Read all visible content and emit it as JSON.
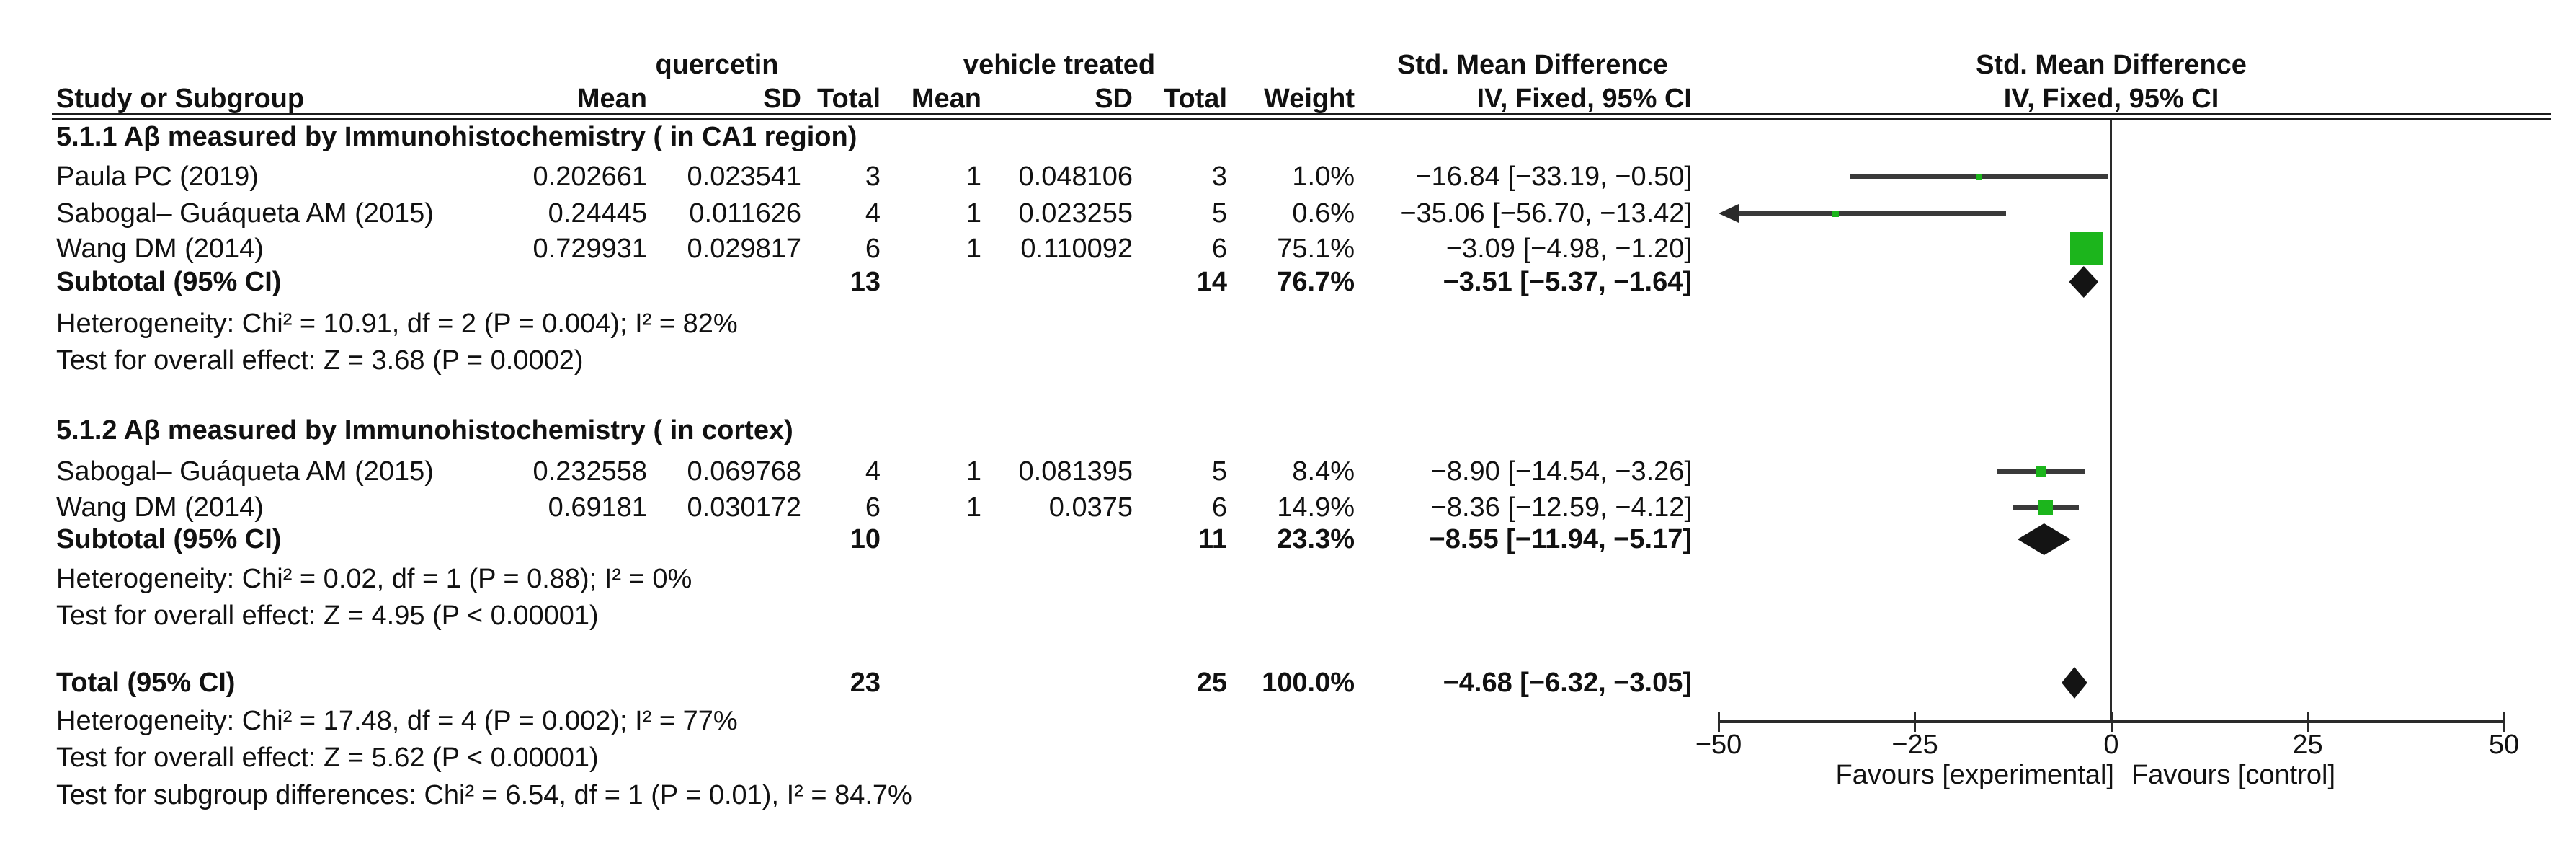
{
  "header": {
    "col_study": "Study or Subgroup",
    "group1_title": "quercetin",
    "group2_title": "vehicle treated",
    "smd_title": "Std. Mean Difference",
    "smd_sub": "IV, Fixed, 95% CI",
    "plot_title": "Std. Mean Difference",
    "plot_sub": "IV, Fixed, 95% CI",
    "cols": [
      "Mean",
      "SD",
      "Total",
      "Mean",
      "SD",
      "Total",
      "Weight"
    ]
  },
  "sections": [
    {
      "title": "5.1.1 Aβ measured by Immunohistochemistry ( in CA1 region)",
      "studies": [
        {
          "name": "Paula PC (2019)",
          "mean1": "0.202661",
          "sd1": "0.023541",
          "n1": "3",
          "mean2": "1",
          "sd2": "0.048106",
          "n2": "3",
          "weight": "1.0%",
          "ci": "−16.84 [−33.19, −0.50]"
        },
        {
          "name": "Sabogal– Guáqueta AM (2015)",
          "mean1": "0.24445",
          "sd1": "0.011626",
          "n1": "4",
          "mean2": "1",
          "sd2": "0.023255",
          "n2": "5",
          "weight": "0.6%",
          "ci": "−35.06 [−56.70, −13.42]"
        },
        {
          "name": "Wang DM (2014)",
          "mean1": "0.729931",
          "sd1": "0.029817",
          "n1": "6",
          "mean2": "1",
          "sd2": "0.110092",
          "n2": "6",
          "weight": "75.1%",
          "ci": "−3.09 [−4.98, −1.20]"
        }
      ],
      "subtotal": {
        "label": "Subtotal (95% CI)",
        "n1": "13",
        "n2": "14",
        "weight": "76.7%",
        "ci": "−3.51 [−5.37, −1.64]"
      },
      "notes": [
        "Heterogeneity: Chi² = 10.91, df = 2 (P = 0.004); I² = 82%",
        "Test for overall effect: Z = 3.68 (P = 0.0002)"
      ]
    },
    {
      "title": "5.1.2 Aβ measured by Immunohistochemistry ( in cortex)",
      "studies": [
        {
          "name": "Sabogal– Guáqueta AM (2015)",
          "mean1": "0.232558",
          "sd1": "0.069768",
          "n1": "4",
          "mean2": "1",
          "sd2": "0.081395",
          "n2": "5",
          "weight": "8.4%",
          "ci": "−8.90 [−14.54, −3.26]"
        },
        {
          "name": "Wang DM (2014)",
          "mean1": "0.69181",
          "sd1": "0.030172",
          "n1": "6",
          "mean2": "1",
          "sd2": "0.0375",
          "n2": "6",
          "weight": "14.9%",
          "ci": "−8.36 [−12.59, −4.12]"
        }
      ],
      "subtotal": {
        "label": "Subtotal (95% CI)",
        "n1": "10",
        "n2": "11",
        "weight": "23.3%",
        "ci": "−8.55 [−11.94, −5.17]"
      },
      "notes": [
        "Heterogeneity: Chi² = 0.02, df = 1 (P = 0.88); I² = 0%",
        "Test for overall effect: Z = 4.95 (P < 0.00001)"
      ]
    }
  ],
  "total": {
    "label": "Total (95% CI)",
    "n1": "23",
    "n2": "25",
    "weight": "100.0%",
    "ci": "−4.68 [−6.32, −3.05]"
  },
  "total_notes": [
    "Heterogeneity: Chi² = 17.48, df = 4 (P = 0.002); I² = 77%",
    "Test for overall effect: Z = 5.62 (P < 0.00001)",
    "Test for subgroup differences: Chi² = 6.54, df = 1 (P = 0.01), I² = 84.7%"
  ],
  "chart_data": {
    "type": "scatter",
    "subtype": "forest-plot",
    "title": "Std. Mean Difference",
    "subtitle": "IV, Fixed, 95% CI",
    "xlabel_left": "Favours [experimental]",
    "xlabel_right": "Favours [control]",
    "xlim": [
      -50,
      50
    ],
    "xticks": [
      -50,
      -25,
      0,
      25,
      50
    ],
    "xtick_labels": [
      "−50",
      "−25",
      "0",
      "25",
      "50"
    ],
    "grid": false,
    "points": [
      {
        "label": "Paula PC (2019)",
        "group": "5.1.1",
        "est": -16.84,
        "lo": -33.19,
        "hi": -0.5,
        "weight_pct": 1.0,
        "marker": "square"
      },
      {
        "label": "Sabogal– Guáqueta AM (2015)",
        "group": "5.1.1",
        "est": -35.06,
        "lo": -56.7,
        "hi": -13.42,
        "weight_pct": 0.6,
        "marker": "square",
        "arrow_left": true
      },
      {
        "label": "Wang DM (2014)",
        "group": "5.1.1",
        "est": -3.09,
        "lo": -4.98,
        "hi": -1.2,
        "weight_pct": 75.1,
        "marker": "square"
      },
      {
        "label": "Subtotal (95% CI)",
        "group": "5.1.1",
        "est": -3.51,
        "lo": -5.37,
        "hi": -1.64,
        "weight_pct": 76.7,
        "marker": "diamond"
      },
      {
        "label": "Sabogal– Guáqueta AM (2015)",
        "group": "5.1.2",
        "est": -8.9,
        "lo": -14.54,
        "hi": -3.26,
        "weight_pct": 8.4,
        "marker": "square"
      },
      {
        "label": "Wang DM (2014)",
        "group": "5.1.2",
        "est": -8.36,
        "lo": -12.59,
        "hi": -4.12,
        "weight_pct": 14.9,
        "marker": "square"
      },
      {
        "label": "Subtotal (95% CI)",
        "group": "5.1.2",
        "est": -8.55,
        "lo": -11.94,
        "hi": -5.17,
        "weight_pct": 23.3,
        "marker": "diamond"
      },
      {
        "label": "Total (95% CI)",
        "group": "total",
        "est": -4.68,
        "lo": -6.32,
        "hi": -3.05,
        "weight_pct": 100.0,
        "marker": "diamond"
      }
    ]
  },
  "colors": {
    "marker_green": "#1cb51c",
    "diamond_black": "#141414",
    "ci_line": "#3a3a3a",
    "text": "#111111"
  }
}
